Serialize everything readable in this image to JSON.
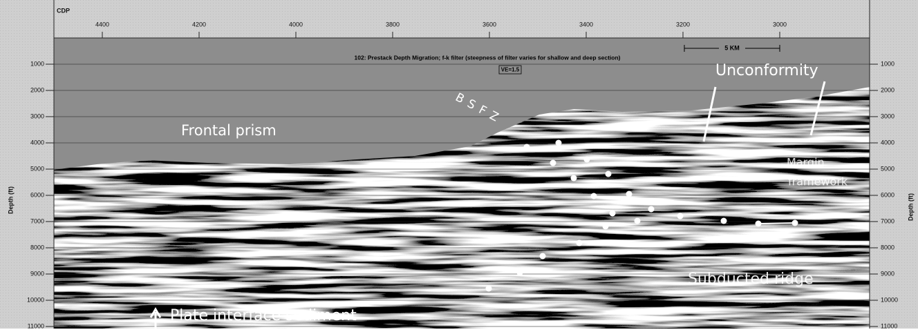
{
  "figure": {
    "title": "102: Prestack Depth Migration; f-k filter (steepness of filter varies for shallow and deep section)",
    "ve": "VE=1.5",
    "scale_bar": "5 KM",
    "x_axis": {
      "label": "CDP",
      "ticks": [
        4400,
        4200,
        4000,
        3800,
        3600,
        3400,
        3200,
        3000
      ]
    },
    "y_axis": {
      "label": "Depth (ft)",
      "ticks": [
        1000,
        2000,
        3000,
        4000,
        5000,
        6000,
        7000,
        8000,
        9000,
        10000,
        11000
      ]
    },
    "annotations": {
      "frontal_prism": "Frontal prism",
      "bsfz": "BSFZ",
      "unconformity": "Unconformity",
      "margin_framework": [
        "Margin",
        "framework"
      ],
      "subducted_ridge": "Subducted ridge",
      "plate_interface": "Plate interface sediment"
    }
  }
}
